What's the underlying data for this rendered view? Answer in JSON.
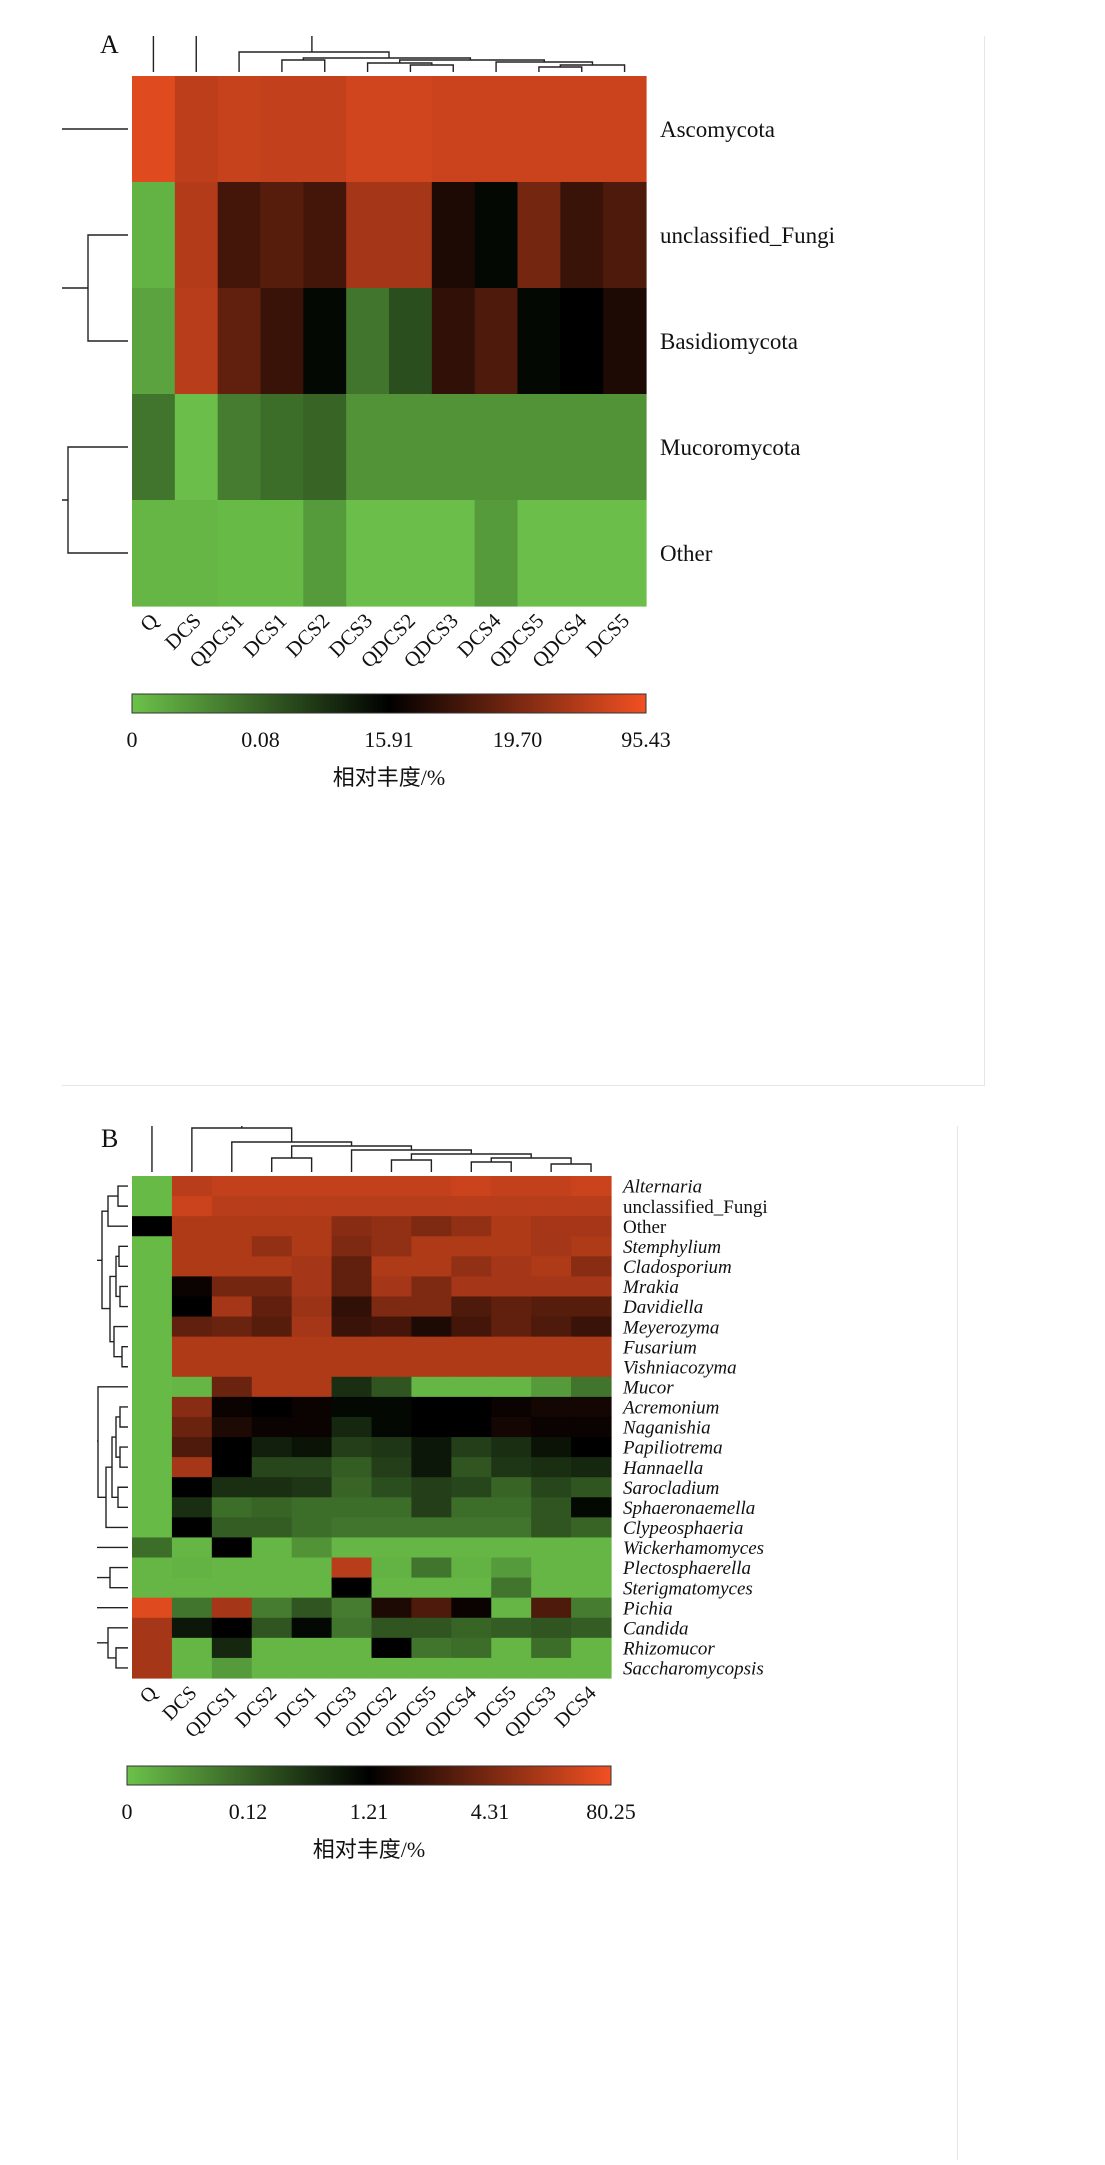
{
  "chart_data": [
    {
      "type": "heatmap",
      "panel_label": "A",
      "rows": [
        "Ascomycota",
        "unclassified_Fungi",
        "Basidiomycota",
        "Mucoromycota",
        "Other"
      ],
      "columns": [
        "Q",
        "DCS",
        "QDCS1",
        "DCS1",
        "DCS2",
        "DCS3",
        "QDCS2",
        "QDCS3",
        "DCS4",
        "QDCS5",
        "QDCS4",
        "DCS5"
      ],
      "values": [
        [
          96,
          89,
          91,
          90,
          90,
          93,
          93,
          92,
          92,
          92,
          92,
          92
        ],
        [
          4,
          87,
          64,
          68,
          64,
          84,
          84,
          56,
          48,
          74,
          62,
          66
        ],
        [
          8,
          88,
          70,
          62,
          48,
          20,
          30,
          60,
          66,
          48,
          50,
          56
        ],
        [
          20,
          1,
          18,
          22,
          24,
          12,
          12,
          12,
          12,
          12,
          12,
          12
        ],
        [
          3,
          3,
          2,
          2,
          10,
          1,
          1,
          1,
          10,
          1,
          1,
          1
        ]
      ],
      "color_scale": {
        "ticks": [
          "0",
          "0.08",
          "15.91",
          "19.70",
          "95.43"
        ],
        "colors": [
          "#6cc24a",
          "#000000",
          "#f25022"
        ],
        "label": "相对丰度/%"
      }
    },
    {
      "type": "heatmap",
      "panel_label": "B",
      "rows": [
        "Alternaria",
        "unclassified_Fungi",
        "Other",
        "Stemphylium",
        "Cladosporium",
        "Mrakia",
        "Davidiella",
        "Meyerozyma",
        "Fusarium",
        "Vishniacozyma",
        "Mucor",
        "Acremonium",
        "Naganishia",
        "Papiliotrema",
        "Hannaella",
        "Sarocladium",
        "Sphaeronaemella",
        "Clypeosphaeria",
        "Wickerhamomyces",
        "Plectosphaerella",
        "Sterigmatomyces",
        "Pichia",
        "Candida",
        "Rhizomucor",
        "Saccharomycopsis"
      ],
      "italic_rows": [
        "Alternaria",
        "Stemphylium",
        "Cladosporium",
        "Mrakia",
        "Davidiella",
        "Meyerozyma",
        "Fusarium",
        "Vishniacozyma",
        "Mucor",
        "Acremonium",
        "Naganishia",
        "Papiliotrema",
        "Hannaella",
        "Sarocladium",
        "Sphaeronaemella",
        "Clypeosphaeria",
        "Wickerhamomyces",
        "Plectosphaerella",
        "Sterigmatomyces",
        "Pichia",
        "Candida",
        "Rhizomucor",
        "Saccharomycopsis"
      ],
      "columns": [
        "Q",
        "DCS",
        "QDCS1",
        "DCS2",
        "DCS1",
        "DCS3",
        "QDCS2",
        "QDCS5",
        "QDCS4",
        "DCS5",
        "QDCS3",
        "DCS4"
      ],
      "values": [
        [
          2,
          88,
          90,
          90,
          90,
          90,
          90,
          90,
          92,
          90,
          90,
          92
        ],
        [
          2,
          92,
          88,
          88,
          88,
          88,
          88,
          88,
          88,
          88,
          88,
          88
        ],
        [
          50,
          86,
          86,
          86,
          86,
          78,
          80,
          76,
          80,
          86,
          84,
          84
        ],
        [
          2,
          86,
          86,
          80,
          86,
          76,
          80,
          86,
          86,
          86,
          84,
          86
        ],
        [
          2,
          86,
          86,
          86,
          84,
          70,
          86,
          86,
          80,
          84,
          86,
          78
        ],
        [
          2,
          52,
          74,
          74,
          84,
          70,
          84,
          76,
          84,
          84,
          84,
          84
        ],
        [
          2,
          50,
          84,
          70,
          82,
          60,
          76,
          76,
          66,
          70,
          68,
          68
        ],
        [
          2,
          70,
          72,
          68,
          84,
          62,
          64,
          56,
          64,
          70,
          66,
          62
        ],
        [
          2,
          86,
          86,
          86,
          86,
          86,
          86,
          86,
          86,
          86,
          86,
          86
        ],
        [
          2,
          86,
          86,
          86,
          86,
          86,
          86,
          86,
          86,
          86,
          86,
          86
        ],
        [
          2,
          3,
          72,
          86,
          86,
          38,
          28,
          3,
          3,
          3,
          10,
          20
        ],
        [
          2,
          78,
          52,
          50,
          52,
          48,
          48,
          50,
          50,
          52,
          54,
          54
        ],
        [
          2,
          72,
          56,
          52,
          52,
          40,
          48,
          50,
          50,
          54,
          52,
          52
        ],
        [
          2,
          66,
          50,
          42,
          45,
          34,
          36,
          44,
          34,
          38,
          45,
          50
        ],
        [
          2,
          84,
          50,
          32,
          32,
          26,
          34,
          44,
          28,
          36,
          38,
          40
        ],
        [
          2,
          50,
          38,
          38,
          36,
          24,
          30,
          34,
          32,
          24,
          32,
          28
        ],
        [
          2,
          38,
          22,
          24,
          22,
          22,
          22,
          34,
          22,
          22,
          28,
          48
        ],
        [
          2,
          50,
          26,
          26,
          22,
          20,
          20,
          20,
          20,
          20,
          28,
          24
        ],
        [
          22,
          3,
          50,
          3,
          12,
          3,
          3,
          3,
          3,
          3,
          3,
          3
        ],
        [
          3,
          4,
          3,
          3,
          3,
          88,
          4,
          20,
          4,
          10,
          3,
          3
        ],
        [
          3,
          3,
          3,
          3,
          3,
          50,
          3,
          3,
          3,
          20,
          3,
          3
        ],
        [
          96,
          20,
          84,
          18,
          28,
          18,
          56,
          66,
          52,
          3,
          66,
          18
        ],
        [
          84,
          44,
          50,
          28,
          48,
          20,
          28,
          28,
          24,
          26,
          28,
          26
        ],
        [
          84,
          3,
          40,
          3,
          3,
          3,
          50,
          20,
          22,
          3,
          22,
          3
        ],
        [
          84,
          3,
          10,
          3,
          3,
          3,
          3,
          3,
          3,
          3,
          3,
          3
        ]
      ],
      "color_scale": {
        "ticks": [
          "0",
          "0.12",
          "1.21",
          "4.31",
          "80.25"
        ],
        "colors": [
          "#6cc24a",
          "#000000",
          "#f25022"
        ],
        "label": "相对丰度/%"
      }
    }
  ]
}
